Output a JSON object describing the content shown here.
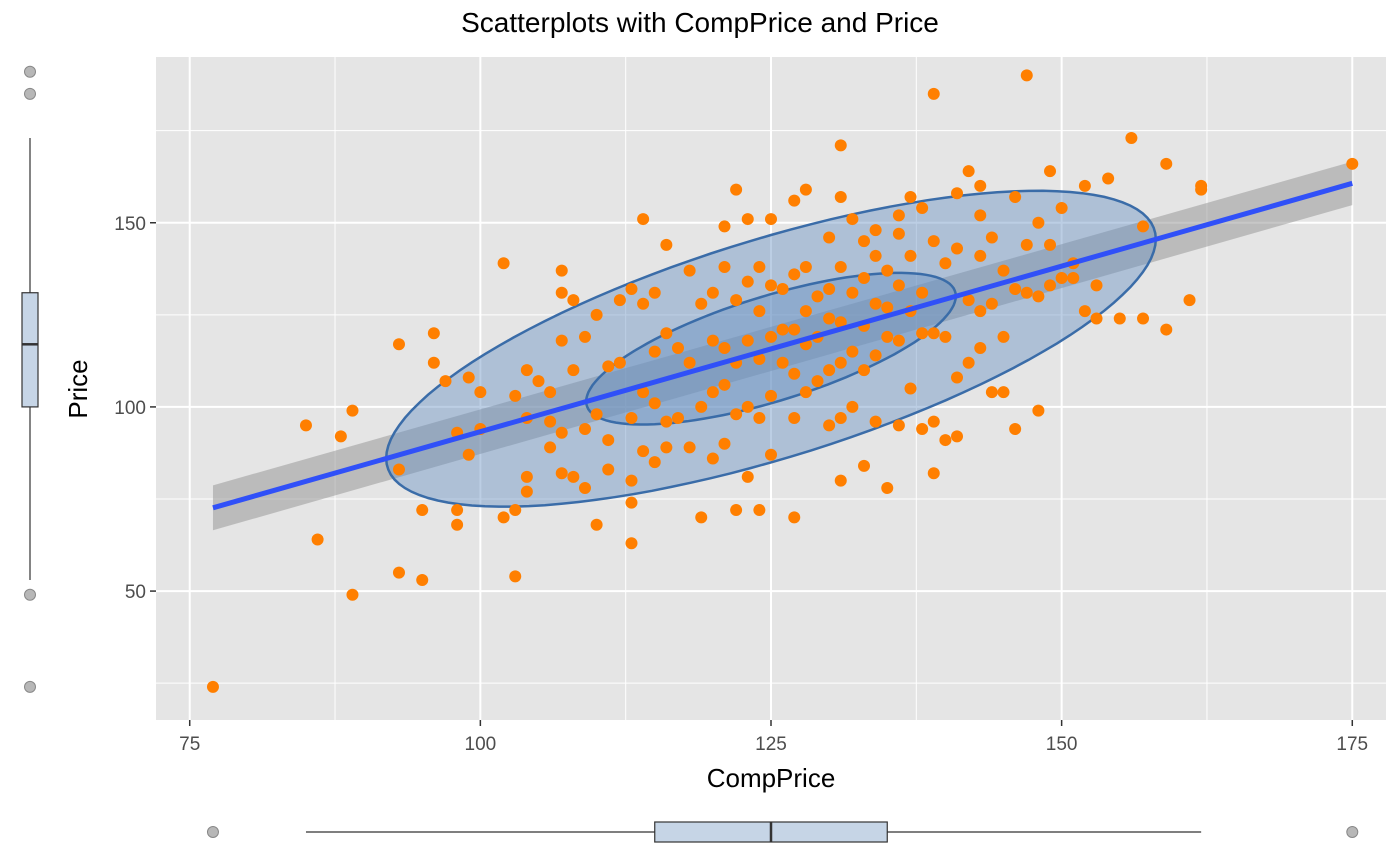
{
  "chart_data": {
    "type": "scatter",
    "title": "Scatterplots with CompPrice and Price",
    "xlabel": "CompPrice",
    "ylabel": "Price",
    "xlim": [
      72.1,
      177.9
    ],
    "ylim": [
      15,
      195
    ],
    "x_ticks": [
      75,
      100,
      125,
      150,
      175
    ],
    "x_tick_labels": [
      "75",
      "100",
      "125",
      "150",
      "175"
    ],
    "y_ticks": [
      50,
      100,
      150
    ],
    "y_tick_labels": [
      "50",
      "100",
      "150"
    ],
    "grid": true,
    "legend": "none",
    "colors": {
      "panel": "#e5e5e5",
      "grid": "#ffffff",
      "points": "#ff7f00",
      "fit_line": "#3050f8",
      "confidence_band": "#999999",
      "ellipse_fill": "#6a93c4",
      "ellipse_stroke": "#3a6ca8",
      "boxplot_fill": "#c6d5e6",
      "outlier": "#999999"
    },
    "fit_line": {
      "x": [
        77,
        175
      ],
      "y": [
        72.6,
        160.7
      ]
    },
    "confidence_band": {
      "x": [
        77,
        175
      ],
      "lower": [
        66.5,
        154.8
      ],
      "upper": [
        78.7,
        166.6
      ]
    },
    "ellipses": [
      {
        "level": "outer",
        "center": [
          125,
          115.8
        ],
        "half_width_x": 33.1,
        "half_height_y": 49.8,
        "slope": 0.899
      },
      {
        "level": "inner",
        "center": [
          125,
          115.8
        ],
        "half_width_x": 15.9,
        "half_height_y": 23.9,
        "slope": 0.899
      }
    ],
    "points": [
      [
        77,
        24
      ],
      [
        85,
        95
      ],
      [
        86,
        64
      ],
      [
        88,
        92
      ],
      [
        89,
        99
      ],
      [
        89,
        49
      ],
      [
        93,
        117
      ],
      [
        93,
        83
      ],
      [
        93,
        55
      ],
      [
        95,
        72
      ],
      [
        95,
        53
      ],
      [
        96,
        120
      ],
      [
        96,
        112
      ],
      [
        97,
        107
      ],
      [
        98,
        93
      ],
      [
        98,
        72
      ],
      [
        98,
        68
      ],
      [
        99,
        108
      ],
      [
        99,
        87
      ],
      [
        100,
        104
      ],
      [
        100,
        94
      ],
      [
        102,
        139
      ],
      [
        102,
        70
      ],
      [
        103,
        103
      ],
      [
        103,
        72
      ],
      [
        103,
        54
      ],
      [
        104,
        110
      ],
      [
        104,
        97
      ],
      [
        104,
        81
      ],
      [
        104,
        77
      ],
      [
        105,
        107
      ],
      [
        106,
        104
      ],
      [
        106,
        96
      ],
      [
        106,
        89
      ],
      [
        107,
        137
      ],
      [
        107,
        131
      ],
      [
        107,
        118
      ],
      [
        107,
        93
      ],
      [
        107,
        82
      ],
      [
        108,
        129
      ],
      [
        108,
        110
      ],
      [
        108,
        81
      ],
      [
        109,
        119
      ],
      [
        109,
        94
      ],
      [
        109,
        78
      ],
      [
        110,
        125
      ],
      [
        110,
        98
      ],
      [
        110,
        68
      ],
      [
        111,
        111
      ],
      [
        111,
        91
      ],
      [
        111,
        83
      ],
      [
        112,
        129
      ],
      [
        112,
        112
      ],
      [
        113,
        132
      ],
      [
        113,
        97
      ],
      [
        113,
        80
      ],
      [
        113,
        74
      ],
      [
        113,
        63
      ],
      [
        114,
        151
      ],
      [
        114,
        128
      ],
      [
        114,
        104
      ],
      [
        114,
        88
      ],
      [
        115,
        131
      ],
      [
        115,
        115
      ],
      [
        115,
        101
      ],
      [
        115,
        85
      ],
      [
        116,
        144
      ],
      [
        116,
        120
      ],
      [
        116,
        96
      ],
      [
        116,
        89
      ],
      [
        117,
        116
      ],
      [
        117,
        97
      ],
      [
        118,
        137
      ],
      [
        118,
        112
      ],
      [
        118,
        89
      ],
      [
        119,
        128
      ],
      [
        119,
        100
      ],
      [
        119,
        70
      ],
      [
        120,
        131
      ],
      [
        120,
        118
      ],
      [
        120,
        104
      ],
      [
        120,
        86
      ],
      [
        121,
        149
      ],
      [
        121,
        138
      ],
      [
        121,
        116
      ],
      [
        121,
        106
      ],
      [
        121,
        90
      ],
      [
        122,
        159
      ],
      [
        122,
        129
      ],
      [
        122,
        112
      ],
      [
        122,
        98
      ],
      [
        122,
        72
      ],
      [
        123,
        151
      ],
      [
        123,
        134
      ],
      [
        123,
        118
      ],
      [
        123,
        100
      ],
      [
        123,
        81
      ],
      [
        124,
        138
      ],
      [
        124,
        126
      ],
      [
        124,
        113
      ],
      [
        124,
        97
      ],
      [
        124,
        72
      ],
      [
        125,
        151
      ],
      [
        125,
        133
      ],
      [
        125,
        119
      ],
      [
        125,
        103
      ],
      [
        125,
        87
      ],
      [
        126,
        132
      ],
      [
        126,
        121
      ],
      [
        126,
        112
      ],
      [
        127,
        156
      ],
      [
        127,
        136
      ],
      [
        127,
        121
      ],
      [
        127,
        109
      ],
      [
        127,
        97
      ],
      [
        127,
        70
      ],
      [
        128,
        159
      ],
      [
        128,
        138
      ],
      [
        128,
        126
      ],
      [
        128,
        117
      ],
      [
        128,
        104
      ],
      [
        129,
        130
      ],
      [
        129,
        119
      ],
      [
        129,
        107
      ],
      [
        130,
        146
      ],
      [
        130,
        132
      ],
      [
        130,
        124
      ],
      [
        130,
        110
      ],
      [
        130,
        95
      ],
      [
        131,
        171
      ],
      [
        131,
        157
      ],
      [
        131,
        138
      ],
      [
        131,
        123
      ],
      [
        131,
        112
      ],
      [
        131,
        97
      ],
      [
        131,
        80
      ],
      [
        132,
        151
      ],
      [
        132,
        131
      ],
      [
        132,
        115
      ],
      [
        132,
        100
      ],
      [
        133,
        145
      ],
      [
        133,
        135
      ],
      [
        133,
        122
      ],
      [
        133,
        110
      ],
      [
        133,
        84
      ],
      [
        134,
        148
      ],
      [
        134,
        141
      ],
      [
        134,
        128
      ],
      [
        134,
        114
      ],
      [
        134,
        96
      ],
      [
        135,
        137
      ],
      [
        135,
        127
      ],
      [
        135,
        119
      ],
      [
        135,
        78
      ],
      [
        136,
        152
      ],
      [
        136,
        147
      ],
      [
        136,
        133
      ],
      [
        136,
        118
      ],
      [
        136,
        95
      ],
      [
        137,
        157
      ],
      [
        137,
        141
      ],
      [
        137,
        126
      ],
      [
        137,
        105
      ],
      [
        138,
        154
      ],
      [
        138,
        131
      ],
      [
        138,
        120
      ],
      [
        138,
        94
      ],
      [
        139,
        185
      ],
      [
        139,
        145
      ],
      [
        139,
        120
      ],
      [
        139,
        96
      ],
      [
        139,
        82
      ],
      [
        140,
        139
      ],
      [
        140,
        119
      ],
      [
        140,
        91
      ],
      [
        141,
        158
      ],
      [
        141,
        143
      ],
      [
        141,
        108
      ],
      [
        141,
        92
      ],
      [
        142,
        164
      ],
      [
        142,
        129
      ],
      [
        142,
        112
      ],
      [
        143,
        160
      ],
      [
        143,
        152
      ],
      [
        143,
        141
      ],
      [
        143,
        126
      ],
      [
        143,
        116
      ],
      [
        144,
        146
      ],
      [
        144,
        128
      ],
      [
        144,
        104
      ],
      [
        145,
        137
      ],
      [
        145,
        119
      ],
      [
        145,
        104
      ],
      [
        146,
        157
      ],
      [
        146,
        132
      ],
      [
        146,
        94
      ],
      [
        147,
        190
      ],
      [
        147,
        144
      ],
      [
        147,
        131
      ],
      [
        148,
        150
      ],
      [
        148,
        130
      ],
      [
        148,
        99
      ],
      [
        149,
        164
      ],
      [
        149,
        144
      ],
      [
        149,
        133
      ],
      [
        150,
        154
      ],
      [
        150,
        135
      ],
      [
        151,
        139
      ],
      [
        151,
        135
      ],
      [
        152,
        160
      ],
      [
        152,
        126
      ],
      [
        153,
        133
      ],
      [
        153,
        124
      ],
      [
        154,
        162
      ],
      [
        155,
        124
      ],
      [
        156,
        173
      ],
      [
        157,
        149
      ],
      [
        157,
        124
      ],
      [
        159,
        166
      ],
      [
        159,
        121
      ],
      [
        161,
        129
      ],
      [
        162,
        160
      ],
      [
        162,
        159
      ],
      [
        175,
        166
      ]
    ],
    "marginal_boxplots": {
      "x": {
        "min": 85,
        "q1": 115,
        "median": 125,
        "q3": 135,
        "max": 162,
        "outliers": [
          77,
          175
        ]
      },
      "y": {
        "min": 53,
        "q1": 100,
        "median": 117,
        "q3": 131,
        "max": 173,
        "outliers": [
          24,
          49,
          185,
          191
        ]
      }
    }
  }
}
